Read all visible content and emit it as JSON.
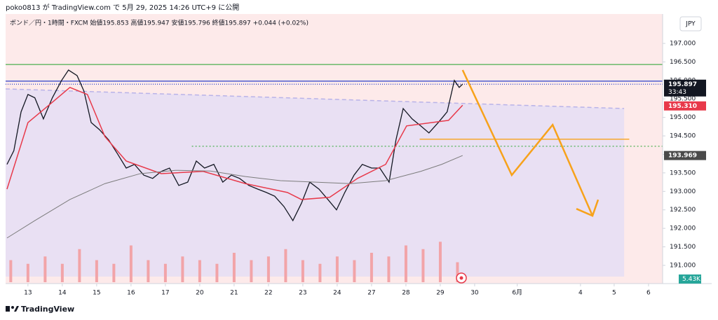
{
  "header": {
    "publisher": "poko0813 が TradingView.com で 5月 29, 2025 14:26 UTC+9 に公開",
    "symbol_info": "ボンド／円・1時間・FXCM 始値195.853 高値195.947 安値195.796 終値195.897 +0.044 (+0.02%)",
    "currency": "JPY",
    "brand": "TradingView"
  },
  "chart_data": {
    "type": "line",
    "xlim": [
      -0.65,
      18.47
    ],
    "xticks": [
      {
        "value": 0,
        "label": "13"
      },
      {
        "value": 1,
        "label": "14"
      },
      {
        "value": 2,
        "label": "15"
      },
      {
        "value": 3,
        "label": "16"
      },
      {
        "value": 4,
        "label": "17"
      },
      {
        "value": 5,
        "label": "20"
      },
      {
        "value": 6,
        "label": "21"
      },
      {
        "value": 7,
        "label": "22"
      },
      {
        "value": 8,
        "label": "23"
      },
      {
        "value": 9,
        "label": "24"
      },
      {
        "value": 10,
        "label": "27"
      },
      {
        "value": 11,
        "label": "28"
      },
      {
        "value": 12,
        "label": "29"
      },
      {
        "value": 13,
        "label": "30"
      },
      {
        "value": 14.24,
        "label": "6月"
      },
      {
        "value": 16.08,
        "label": "4"
      },
      {
        "value": 17.06,
        "label": "5"
      },
      {
        "value": 18.06,
        "label": "6"
      }
    ],
    "ylim": [
      190.507,
      197.795
    ],
    "yticks": [
      {
        "value": 191,
        "label": "191.000"
      },
      {
        "value": 191.5,
        "label": "191.500"
      },
      {
        "value": 192,
        "label": "192.000"
      },
      {
        "value": 192.5,
        "label": "192.500"
      },
      {
        "value": 193,
        "label": "193.000"
      },
      {
        "value": 193.5,
        "label": "193.500"
      },
      {
        "value": 194,
        "label": "194.000"
      },
      {
        "value": 194.5,
        "label": "194.500"
      },
      {
        "value": 195,
        "label": "195.000"
      },
      {
        "value": 195.5,
        "label": "195.500"
      },
      {
        "value": 196,
        "label": "196.000"
      },
      {
        "value": 196.5,
        "label": "196.500"
      },
      {
        "value": 197,
        "label": "197.000"
      }
    ],
    "series": [
      {
        "color": "#131722",
        "width": 1.3,
        "x": [
          -0.61,
          -0.41,
          -0.2,
          0,
          0.2,
          0.45,
          0.71,
          0.98,
          1.18,
          1.43,
          1.63,
          1.84,
          2.08,
          2.35,
          2.61,
          2.86,
          3.1,
          3.37,
          3.63,
          3.88,
          4.12,
          4.39,
          4.65,
          4.9,
          5.14,
          5.41,
          5.67,
          5.92,
          6.16,
          6.43,
          6.69,
          6.94,
          7.18,
          7.45,
          7.71,
          7.96,
          8.2,
          8.47,
          8.73,
          8.98,
          9.22,
          9.49,
          9.73,
          10,
          10.24,
          10.51,
          10.71,
          10.92,
          11.18,
          11.43,
          11.67,
          11.94,
          12.2,
          12.41,
          12.55,
          12.65
        ],
        "values": [
          193.73,
          194.1,
          195.15,
          195.62,
          195.53,
          194.96,
          195.53,
          196.0,
          196.28,
          196.13,
          195.71,
          194.86,
          194.67,
          194.39,
          194.01,
          193.63,
          193.73,
          193.44,
          193.35,
          193.54,
          193.63,
          193.16,
          193.25,
          193.82,
          193.63,
          193.73,
          193.25,
          193.44,
          193.35,
          193.16,
          193.06,
          192.97,
          192.87,
          192.59,
          192.21,
          192.68,
          193.25,
          193.06,
          192.78,
          192.5,
          192.97,
          193.44,
          193.73,
          193.63,
          193.63,
          193.25,
          194.39,
          195.24,
          194.96,
          194.77,
          194.58,
          194.86,
          195.15,
          196.0,
          195.81,
          195.9
        ]
      },
      {
        "color": "#e8394a",
        "width": 1.5,
        "x": [
          -0.61,
          0,
          0.61,
          1.22,
          1.73,
          2.24,
          2.86,
          3.88,
          5.1,
          6.33,
          7.55,
          7.96,
          8.78,
          9.59,
          10.41,
          11.02,
          12.24,
          12.65
        ],
        "values": [
          193.06,
          194.86,
          195.33,
          195.81,
          195.62,
          194.48,
          193.82,
          193.48,
          193.54,
          193.21,
          192.97,
          192.78,
          192.84,
          193.35,
          193.73,
          194.77,
          194.92,
          195.33
        ]
      },
      {
        "color": "#7c7c7c",
        "width": 1,
        "x": [
          -0.61,
          0.2,
          1.22,
          2.24,
          3.27,
          4.29,
          5.31,
          6.33,
          7.35,
          8.37,
          9.39,
          10.41,
          11.43,
          12.04,
          12.65
        ],
        "values": [
          191.74,
          192.21,
          192.78,
          193.21,
          193.48,
          193.57,
          193.55,
          193.4,
          193.29,
          193.25,
          193.21,
          193.29,
          193.54,
          193.73,
          193.97
        ]
      }
    ],
    "levels": [
      {
        "value": 196.43,
        "color": "#4caf50",
        "dash": "none",
        "x": [
          -0.65,
          18.47
        ]
      },
      {
        "value": 195.98,
        "color": "#2a3fc9",
        "dash": "none",
        "x": [
          -0.65,
          18.47
        ]
      },
      {
        "value": 195.897,
        "color": "#2a3fc9",
        "dash": "1 2",
        "x": [
          -0.65,
          18.47
        ]
      },
      {
        "value": 194.22,
        "color": "#4caf50",
        "dash": "2 3",
        "x": [
          4.77,
          18.47
        ]
      },
      {
        "value": 194.41,
        "color": "#f7a21b",
        "dash": "none",
        "x": [
          11.4,
          17.5
        ]
      }
    ],
    "trendline": {
      "x": [
        -0.65,
        17.35
      ],
      "values": [
        195.77,
        195.24
      ],
      "color": "#b9b3e8"
    },
    "arrow": {
      "x": [
        12.65,
        14.08,
        15.27,
        16.43
      ],
      "values": [
        196.28,
        193.44,
        194.8,
        192.34
      ],
      "color": "#f7a21b"
    },
    "price_labels": [
      {
        "value": 195.897,
        "label": "195.897",
        "sub": "33:43",
        "color": "#131722"
      },
      {
        "value": 195.31,
        "label": "195.310",
        "color": "#e8394a"
      },
      {
        "value": 193.969,
        "label": "193.969",
        "color": "#4a4a4a"
      }
    ],
    "volume": {
      "color": "#f2a4a8",
      "x": [
        -0.5,
        0,
        0.5,
        1,
        1.5,
        2,
        2.5,
        3,
        3.5,
        4,
        4.5,
        5,
        5.5,
        6,
        6.5,
        7,
        7.5,
        8,
        8.5,
        9,
        9.5,
        10,
        10.5,
        11,
        11.5,
        12,
        12.5
      ],
      "values": [
        6,
        5,
        7,
        5,
        9,
        6,
        5,
        10,
        6,
        5,
        7,
        6,
        5,
        8,
        6,
        7,
        9,
        6,
        5,
        7,
        6,
        8,
        7,
        10,
        9,
        11,
        5.43
      ],
      "vlim": [
        0,
        20
      ],
      "last_label": {
        "value": 5.43,
        "label": "5.43K"
      }
    }
  }
}
